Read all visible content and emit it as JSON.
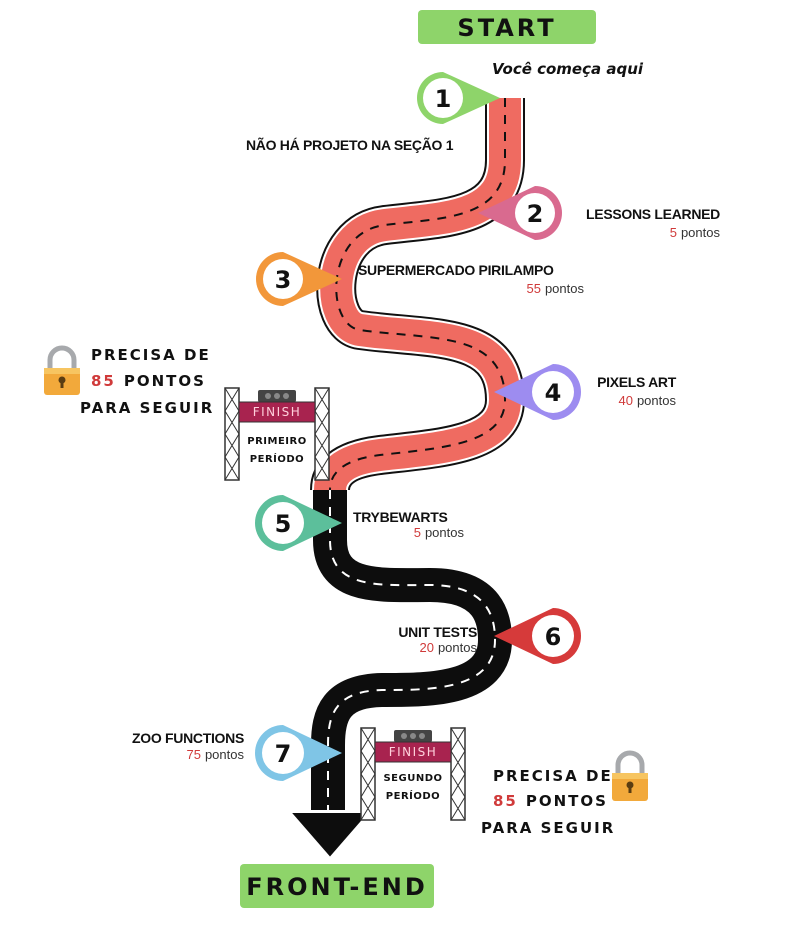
{
  "start_label": "START",
  "start_note": "Você começa aqui",
  "end_label": "FRONT-END",
  "section1_note": "NÃO HÁ PROJETO NA SEÇÃO 1",
  "colors": {
    "green": "#8ed46a",
    "road_red": "#ef6b61",
    "road_black": "#0d0d0d",
    "pin1": "#8ed46a",
    "pin2": "#d96a8f",
    "pin3": "#f2973a",
    "pin4": "#9d8cf0",
    "pin5": "#5cbf9b",
    "pin6": "#d63a3a",
    "pin7": "#7fc5e6",
    "points_number": "#d03a3a"
  },
  "milestones": [
    {
      "number": "1",
      "title": "",
      "points": ""
    },
    {
      "number": "2",
      "title": "LESSONS LEARNED",
      "points_value": "5",
      "points_unit": "pontos"
    },
    {
      "number": "3",
      "title": "SUPERMERCADO PIRILAMPO",
      "points_value": "55",
      "points_unit": "pontos"
    },
    {
      "number": "4",
      "title": "PIXELS ART",
      "points_value": "40",
      "points_unit": "pontos"
    },
    {
      "number": "5",
      "title": "TRYBEWARTS",
      "points_value": "5",
      "points_unit": "pontos"
    },
    {
      "number": "6",
      "title": "UNIT TESTS",
      "points_value": "20",
      "points_unit": "pontos"
    },
    {
      "number": "7",
      "title": "ZOO FUNCTIONS",
      "points_value": "75",
      "points_unit": "pontos"
    }
  ],
  "gates": [
    {
      "finish": "FINISH",
      "line1": "PRIMEIRO",
      "line2": "PERÍODO"
    },
    {
      "finish": "FINISH",
      "line1": "SEGUNDO",
      "line2": "PERÍODO"
    }
  ],
  "locks": [
    {
      "line1": "PRECISA DE",
      "value": "85",
      "line2_suffix": "PONTOS",
      "line3": "PARA SEGUIR"
    },
    {
      "line1": "PRECISA DE",
      "value": "85",
      "line2_suffix": "PONTOS",
      "line3": "PARA SEGUIR"
    }
  ]
}
